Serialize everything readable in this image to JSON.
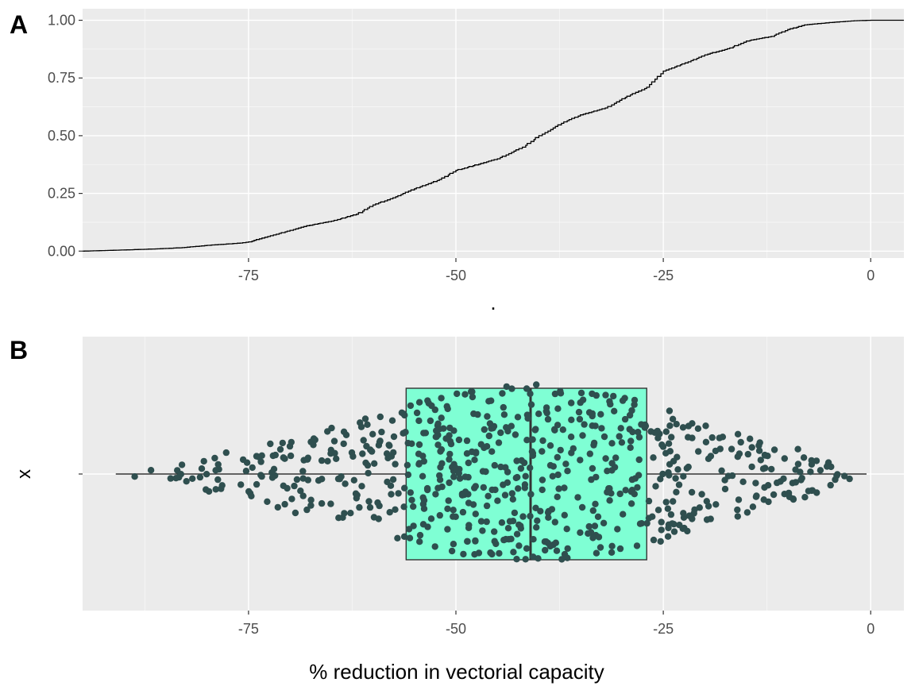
{
  "chart_data": [
    {
      "panel": "A",
      "type": "line",
      "subtype": "empirical cumulative distribution (step)",
      "xlabel": ".",
      "ylabel": "",
      "xlim": [
        -95,
        4
      ],
      "ylim": [
        -0.03,
        1.05
      ],
      "x_ticks": [
        "-75",
        "-50",
        "-25",
        "0"
      ],
      "x_tick_values": [
        -75,
        -50,
        -25,
        0
      ],
      "y_ticks": [
        "0.00",
        "0.25",
        "0.50",
        "0.75",
        "1.00"
      ],
      "y_tick_values": [
        0,
        0.25,
        0.5,
        0.75,
        1
      ],
      "grid": true,
      "line_color": "#000000",
      "x": [
        -95,
        -90,
        -86,
        -83,
        -80,
        -78,
        -76,
        -75,
        -72,
        -70,
        -68,
        -65,
        -62,
        -60,
        -57,
        -55,
        -52,
        -50,
        -47,
        -45,
        -42,
        -40,
        -37,
        -35,
        -32,
        -30,
        -27,
        -25,
        -22,
        -20,
        -17,
        -15,
        -12,
        -10,
        -8,
        -5,
        -2,
        0,
        4
      ],
      "y": [
        0.0,
        0.005,
        0.01,
        0.015,
        0.025,
        0.03,
        0.035,
        0.04,
        0.07,
        0.09,
        0.11,
        0.13,
        0.16,
        0.2,
        0.24,
        0.27,
        0.31,
        0.35,
        0.38,
        0.4,
        0.45,
        0.5,
        0.56,
        0.59,
        0.62,
        0.66,
        0.71,
        0.78,
        0.82,
        0.85,
        0.88,
        0.91,
        0.93,
        0.96,
        0.98,
        0.99,
        0.998,
        1.0,
        1.0
      ]
    },
    {
      "panel": "B",
      "type": "scatter",
      "subtype": "boxplot with beeswarm points",
      "xlabel": "% reduction in vectorial capacity",
      "ylabel": "x",
      "y_ticks": [
        "x"
      ],
      "xlim": [
        -95,
        4
      ],
      "x_ticks": [
        "-75",
        "-50",
        "-25",
        "0"
      ],
      "x_tick_values": [
        -75,
        -50,
        -25,
        0
      ],
      "grid": true,
      "box": {
        "min": -91,
        "q1": -56,
        "median": -41,
        "q3": -27,
        "max": -0.5,
        "fill": "#7fffd4",
        "border": "#333333"
      },
      "points_color": "#2f4f4f",
      "density_x": [
        -92,
        -85,
        -78,
        -70,
        -62,
        -56,
        -50,
        -45,
        -41,
        -35,
        -30,
        -26,
        -20,
        -12,
        -5,
        0
      ],
      "density_w": [
        0.05,
        0.15,
        0.45,
        0.8,
        1.1,
        1.45,
        1.7,
        1.85,
        1.9,
        1.75,
        1.65,
        1.5,
        1.05,
        0.75,
        0.35,
        0.1
      ],
      "n_points": 700
    }
  ],
  "panel_labels": {
    "a": "A",
    "b": "B"
  },
  "x_axis_title_a": ".",
  "x_axis_title_b": "% reduction in vectorial capacity",
  "y_axis_title_b": "x"
}
